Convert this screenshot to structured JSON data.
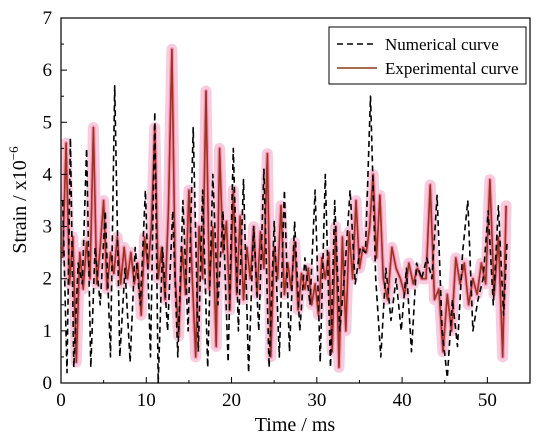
{
  "chart_data": {
    "type": "line",
    "xlabel": "Time / ms",
    "ylabel_text": "Strain / x10",
    "ylabel_exponent": "−6",
    "xlim": [
      0,
      55
    ],
    "ylim": [
      0,
      7
    ],
    "xticks": [
      0,
      10,
      20,
      30,
      40,
      50
    ],
    "yticks": [
      0,
      1,
      2,
      3,
      4,
      5,
      6,
      7
    ],
    "grid": false,
    "legend_position": "top-right",
    "series": [
      {
        "name": "Numerical curve",
        "color": "#000000",
        "style": "dashed",
        "x": [
          0.2,
          0.7,
          1.1,
          1.5,
          2.0,
          2.5,
          3.0,
          3.5,
          4.0,
          4.6,
          5.2,
          5.8,
          6.3,
          6.9,
          7.5,
          8.1,
          8.7,
          9.3,
          9.9,
          10.5,
          11.0,
          11.4,
          11.9,
          12.5,
          13.1,
          13.7,
          14.3,
          14.9,
          15.5,
          16.1,
          16.6,
          17.2,
          17.8,
          18.4,
          19.0,
          19.6,
          20.2,
          20.8,
          21.4,
          22.0,
          22.6,
          23.2,
          23.8,
          24.4,
          25.0,
          25.6,
          26.2,
          26.8,
          27.4,
          28.0,
          28.6,
          29.2,
          29.8,
          30.4,
          31.0,
          31.6,
          32.1,
          32.7,
          33.3,
          33.9,
          34.5,
          35.1,
          35.7,
          36.3,
          36.9,
          37.5,
          38.1,
          38.7,
          39.3,
          39.9,
          40.5,
          41.1,
          41.7,
          42.3,
          42.9,
          43.5,
          44.1,
          44.7,
          45.3,
          45.9,
          46.5,
          47.1,
          47.7,
          48.3,
          48.9,
          49.5,
          50.1,
          50.7,
          51.3,
          51.9,
          52.3
        ],
        "y": [
          3.5,
          0.2,
          4.7,
          0.3,
          2.3,
          1.9,
          4.5,
          0.3,
          2.6,
          1.5,
          3.3,
          0.5,
          5.7,
          0.5,
          2.2,
          0.4,
          2.6,
          1.5,
          3.7,
          0.5,
          5.2,
          0.0,
          2.6,
          1.0,
          3.3,
          0.5,
          3.5,
          1.0,
          4.9,
          0.6,
          3.7,
          0.3,
          4.0,
          1.5,
          3.3,
          0.4,
          4.5,
          1.0,
          3.9,
          0.2,
          3.0,
          1.0,
          4.1,
          0.3,
          3.1,
          0.5,
          3.7,
          0.6,
          3.1,
          1.0,
          2.4,
          1.5,
          3.7,
          0.4,
          4.0,
          0.3,
          3.5,
          1.0,
          2.2,
          3.7,
          1.9,
          2.6,
          2.5,
          5.5,
          2.0,
          0.5,
          2.2,
          1.2,
          2.0,
          1.0,
          2.2,
          0.6,
          2.3,
          2.0,
          2.4,
          2.0,
          3.6,
          1.0,
          0.1,
          1.6,
          0.7,
          2.5,
          3.5,
          1.0,
          1.6,
          2.0,
          3.3,
          1.5,
          3.4,
          1.3,
          2.7
        ]
      },
      {
        "name": "Experimental curve",
        "color": "#8b3a1a",
        "style": "solid",
        "x": [
          0.2,
          0.6,
          1.0,
          1.4,
          1.8,
          2.2,
          2.6,
          3.0,
          3.4,
          3.8,
          4.2,
          4.6,
          5.0,
          5.4,
          5.8,
          6.2,
          6.6,
          7.0,
          7.4,
          7.8,
          8.2,
          8.6,
          9.0,
          9.4,
          9.8,
          10.2,
          10.6,
          11.0,
          11.4,
          11.8,
          12.2,
          12.6,
          13.0,
          13.4,
          13.8,
          14.2,
          14.6,
          15.0,
          15.4,
          15.8,
          16.2,
          16.6,
          17.0,
          17.4,
          17.8,
          18.2,
          18.6,
          19.0,
          19.4,
          19.8,
          20.2,
          20.6,
          21.0,
          21.4,
          21.8,
          22.2,
          22.6,
          23.0,
          23.4,
          23.8,
          24.2,
          24.6,
          25.0,
          25.4,
          25.8,
          26.2,
          26.6,
          27.0,
          27.4,
          27.8,
          28.2,
          28.6,
          29.0,
          29.4,
          29.8,
          30.2,
          30.6,
          31.0,
          31.4,
          31.8,
          32.2,
          32.6,
          33.0,
          33.4,
          33.8,
          34.2,
          34.6,
          35.0,
          35.4,
          35.8,
          36.2,
          36.6,
          37.0,
          37.4,
          37.8,
          38.3,
          38.8,
          39.3,
          39.8,
          40.3,
          40.8,
          41.3,
          41.8,
          42.3,
          42.8,
          43.3,
          43.8,
          44.3,
          44.8,
          45.3,
          45.8,
          46.3,
          46.8,
          47.3,
          47.8,
          48.3,
          48.8,
          49.3,
          49.8,
          50.3,
          50.8,
          51.3,
          51.8,
          52.2
        ],
        "y": [
          2.4,
          4.6,
          1.9,
          2.8,
          0.4,
          2.5,
          1.8,
          2.7,
          2.0,
          4.9,
          1.9,
          2.6,
          3.5,
          1.8,
          2.5,
          2.1,
          2.8,
          1.9,
          2.6,
          2.0,
          2.5,
          1.9,
          2.3,
          1.3,
          2.8,
          2.2,
          3.0,
          4.9,
          2.0,
          2.6,
          1.6,
          3.3,
          6.4,
          2.0,
          0.9,
          2.6,
          1.7,
          3.7,
          2.0,
          0.5,
          3.0,
          2.0,
          5.6,
          1.8,
          3.0,
          0.7,
          4.5,
          2.5,
          3.1,
          1.4,
          3.7,
          1.7,
          3.2,
          1.6,
          2.6,
          2.0,
          3.0,
          1.7,
          2.9,
          2.2,
          4.4,
          0.5,
          2.6,
          2.0,
          3.4,
          1.7,
          2.3,
          1.8,
          2.7,
          1.4,
          2.1,
          1.8,
          2.2,
          1.5,
          1.9,
          1.3,
          2.4,
          2.0,
          2.5,
          0.6,
          3.0,
          0.3,
          2.8,
          1.0,
          2.9,
          2.0,
          3.5,
          2.2,
          2.6,
          2.5,
          3.0,
          4.0,
          2.4,
          3.6,
          2.0,
          1.6,
          2.6,
          2.2,
          2.0,
          1.7,
          2.3,
          1.9,
          2.2,
          2.0,
          2.0,
          3.8,
          1.6,
          1.8,
          0.6,
          1.7,
          1.0,
          2.4,
          1.9,
          2.3,
          1.5,
          2.0,
          1.7,
          2.3,
          1.9,
          3.9,
          1.7,
          2.8,
          0.5,
          3.4
        ]
      }
    ]
  }
}
